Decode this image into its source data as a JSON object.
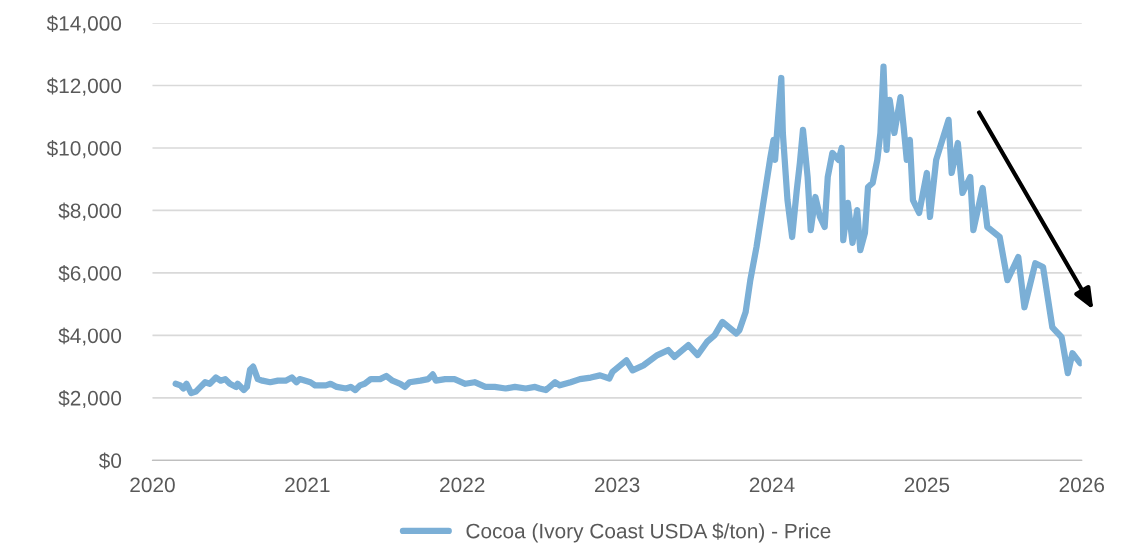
{
  "chart_data": {
    "type": "line",
    "x": [
      2020.15,
      2020.18,
      2020.2,
      2020.22,
      2020.25,
      2020.28,
      2020.31,
      2020.34,
      2020.37,
      2020.41,
      2020.44,
      2020.47,
      2020.5,
      2020.54,
      2020.55,
      2020.59,
      2020.61,
      2020.63,
      2020.65,
      2020.68,
      2020.71,
      2020.76,
      2020.81,
      2020.86,
      2020.9,
      2020.93,
      2020.95,
      2021.02,
      2021.05,
      2021.12,
      2021.15,
      2021.19,
      2021.25,
      2021.28,
      2021.31,
      2021.34,
      2021.37,
      2021.41,
      2021.47,
      2021.51,
      2021.55,
      2021.6,
      2021.63,
      2021.66,
      2021.73,
      2021.78,
      2021.81,
      2021.83,
      2021.89,
      2021.95,
      2022.02,
      2022.08,
      2022.15,
      2022.21,
      2022.28,
      2022.34,
      2022.41,
      2022.47,
      2022.5,
      2022.54,
      2022.6,
      2022.63,
      2022.7,
      2022.76,
      2022.83,
      2022.89,
      2022.95,
      2022.97,
      2023.06,
      2023.1,
      2023.17,
      2023.26,
      2023.33,
      2023.37,
      2023.46,
      2023.52,
      2023.58,
      2023.63,
      2023.68,
      2023.77,
      2023.79,
      2023.83,
      2023.86,
      2023.9,
      2023.94,
      2023.99,
      2024.01,
      2024.02,
      2024.04,
      2024.06,
      2024.07,
      2024.1,
      2024.13,
      2024.16,
      2024.18,
      2024.2,
      2024.23,
      2024.25,
      2024.28,
      2024.31,
      2024.34,
      2024.36,
      2024.39,
      2024.43,
      2024.45,
      2024.46,
      2024.49,
      2024.52,
      2024.55,
      2024.57,
      2024.6,
      2024.62,
      2024.65,
      2024.68,
      2024.7,
      2024.72,
      2024.74,
      2024.76,
      2024.79,
      2024.83,
      2024.85,
      2024.87,
      2024.89,
      2024.91,
      2024.95,
      2025.0,
      2025.02,
      2025.06,
      2025.14,
      2025.16,
      2025.2,
      2025.23,
      2025.28,
      2025.3,
      2025.36,
      2025.39,
      2025.47,
      2025.52,
      2025.59,
      2025.63,
      2025.7,
      2025.75,
      2025.81,
      2025.87,
      2025.91,
      2025.94,
      2025.99
    ],
    "series": [
      {
        "name": "Cocoa (Ivory Coast USDA $/ton) - Price",
        "color": "#7bafd6",
        "values": [
          2450,
          2400,
          2300,
          2450,
          2150,
          2200,
          2350,
          2500,
          2450,
          2650,
          2550,
          2600,
          2450,
          2350,
          2450,
          2250,
          2350,
          2900,
          3000,
          2600,
          2550,
          2500,
          2550,
          2550,
          2650,
          2500,
          2600,
          2500,
          2400,
          2400,
          2450,
          2350,
          2300,
          2350,
          2250,
          2400,
          2450,
          2600,
          2600,
          2700,
          2550,
          2450,
          2350,
          2500,
          2550,
          2600,
          2750,
          2550,
          2600,
          2600,
          2450,
          2500,
          2350,
          2350,
          2300,
          2350,
          2300,
          2350,
          2300,
          2250,
          2500,
          2400,
          2500,
          2600,
          2650,
          2720,
          2620,
          2830,
          3200,
          2880,
          3040,
          3370,
          3530,
          3310,
          3690,
          3370,
          3790,
          4010,
          4430,
          4060,
          4170,
          4750,
          5770,
          6830,
          8110,
          9710,
          10260,
          9620,
          10990,
          12240,
          10480,
          8330,
          7150,
          8650,
          9520,
          10580,
          9070,
          7370,
          8430,
          7790,
          7470,
          9070,
          9840,
          9620,
          10000,
          7050,
          8240,
          6960,
          8010,
          6730,
          7280,
          8750,
          8880,
          9620,
          10480,
          12600,
          9940,
          11540,
          10480,
          11630,
          10670,
          9620,
          10260,
          8330,
          7920,
          9200,
          7790,
          9620,
          10900,
          9200,
          10160,
          8560,
          9070,
          7370,
          8720,
          7470,
          7150,
          5770,
          6510,
          4900,
          6310,
          6190,
          4260,
          3940,
          2790,
          3430,
          3110
        ]
      }
    ],
    "xlim": [
      2020,
      2026
    ],
    "xticks": [
      2020,
      2021,
      2022,
      2023,
      2024,
      2025,
      2026
    ],
    "ylim": [
      0,
      14000
    ],
    "yticks": [
      {
        "value": 0,
        "label": "$0"
      },
      {
        "value": 2000,
        "label": "$2,000"
      },
      {
        "value": 4000,
        "label": "$4,000"
      },
      {
        "value": 6000,
        "label": "$6,000"
      },
      {
        "value": 8000,
        "label": "$8,000"
      },
      {
        "value": 10000,
        "label": "$10,000"
      },
      {
        "value": 12000,
        "label": "$12,000"
      },
      {
        "value": 14000,
        "label": "$14,000"
      }
    ],
    "grid": "y",
    "legend": "bottom",
    "line_style": "solid",
    "marker": "none"
  }
}
